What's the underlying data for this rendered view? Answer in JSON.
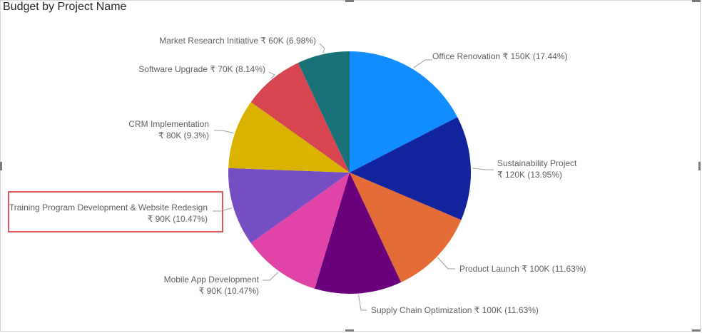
{
  "visual": {
    "title": "Budget by Project Name"
  },
  "chart_data": {
    "type": "pie",
    "title": "Budget by Project Name",
    "start_angle_deg": 0,
    "direction": "clockwise",
    "currency_symbol": "₹",
    "slices": [
      {
        "name": "Office Renovation",
        "value": 150,
        "display_value": "₹ 150K",
        "percent": "17.44%",
        "color": "#118DFF",
        "label_lines": [
          "Office Renovation ₹ 150K (17.44%)"
        ]
      },
      {
        "name": "Sustainability Project",
        "value": 120,
        "display_value": "₹ 120K",
        "percent": "13.95%",
        "color": "#12239E",
        "label_lines": [
          "Sustainability Project",
          "₹ 120K (13.95%)"
        ]
      },
      {
        "name": "Product Launch",
        "value": 100,
        "display_value": "₹ 100K",
        "percent": "11.63%",
        "color": "#E66C37",
        "label_lines": [
          "Product Launch ₹ 100K (11.63%)"
        ]
      },
      {
        "name": "Supply Chain Optimization",
        "value": 100,
        "display_value": "₹ 100K",
        "percent": "11.63%",
        "color": "#6B007B",
        "label_lines": [
          "Supply Chain Optimization ₹ 100K (11.63%)"
        ]
      },
      {
        "name": "Mobile App Development",
        "value": 90,
        "display_value": "₹ 90K",
        "percent": "10.47%",
        "color": "#E044A7",
        "label_lines": [
          "Mobile App Development",
          "₹ 90K (10.47%)"
        ]
      },
      {
        "name": "Training Program Development & Website Redesign",
        "value": 90,
        "display_value": "₹ 90K",
        "percent": "10.47%",
        "color": "#744EC2",
        "label_lines": [
          "Training Program Development & Website Redesign",
          "₹ 90K (10.47%)"
        ],
        "highlighted": true
      },
      {
        "name": "CRM Implementation",
        "value": 80,
        "display_value": "₹ 80K",
        "percent": "9.3%",
        "color": "#D9B300",
        "label_lines": [
          "CRM Implementation",
          "₹ 80K (9.3%)"
        ]
      },
      {
        "name": "Software Upgrade",
        "value": 70,
        "display_value": "₹ 70K",
        "percent": "8.14%",
        "color": "#D64550",
        "label_lines": [
          "Software Upgrade ₹ 70K (8.14%)"
        ]
      },
      {
        "name": "Market Research Initiative",
        "value": 60,
        "display_value": "₹ 60K",
        "percent": "6.98%",
        "color": "#197278",
        "label_lines": [
          "Market Research Initiative ₹ 60K (6.98%)"
        ]
      }
    ],
    "highlight_color": "#E15759"
  }
}
